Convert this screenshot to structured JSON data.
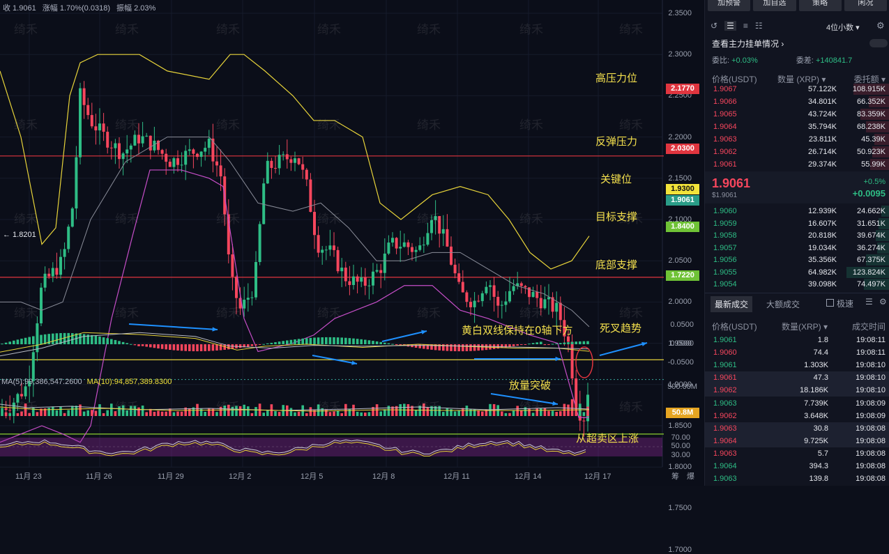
{
  "chart_header": {
    "close": "收 1.9061",
    "change": "涨幅 1.70%(0.0318)",
    "amplitude": "振幅 2.03%"
  },
  "price_axis": [
    "2.3500",
    "2.3000",
    "2.2500",
    "2.2000",
    "2.1500",
    "2.1000",
    "2.0500",
    "2.0000",
    "1.9500",
    "1.9000",
    "1.8500",
    "1.8000",
    "1.7500",
    "1.7000"
  ],
  "price_tags": {
    "high_resistance": "2.1770",
    "rebound_resistance": "2.0300",
    "key_level": "1.9300",
    "current": "1.9061",
    "target_support": "1.8400",
    "bottom_support": "1.7220"
  },
  "low_marker": "← 1.8201",
  "annotations": {
    "high_resistance": "高压力位",
    "rebound_resistance": "反弹压力",
    "key_level": "关键位",
    "target_support": "目标支撑",
    "bottom_support": "底部支撑",
    "macd_note": "黄白双线保持在0轴下方",
    "dead_cross": "死叉趋势",
    "volume_break": "放量突破",
    "rsi_note": "从超卖区上涨"
  },
  "macd_axis": [
    "0.0500",
    "0.0000",
    "-0.0500"
  ],
  "volume_ma": {
    "ma5": "MA(5):99,386,547.2600",
    "ma10": "MA(10):94,857,389.8300"
  },
  "volume_axis": {
    "top": "500.00M",
    "current": "50.8M"
  },
  "rsi_axis": [
    "70.00",
    "50.00",
    "30.00"
  ],
  "dates": [
    "11月 23",
    "11月 26",
    "11月 29",
    "12月 2",
    "12月 5",
    "12月 8",
    "12月 11",
    "12月 14",
    "12月 17"
  ],
  "watermark": "绮禾",
  "corner": [
    "筹",
    "爆"
  ],
  "colors": {
    "up": "#2ebd85",
    "down": "#f6465d",
    "resistance": "#e0353f",
    "keylevel": "#e6d23a",
    "support": "#8ccf2f",
    "annotation": "#f4e04d",
    "boll_upper": "#e8d43a",
    "boll_lower": "#c64ec8",
    "arrow": "#1e90ff"
  },
  "side": {
    "buttons": [
      "加预警",
      "加自选",
      "策略",
      "闲况"
    ],
    "precision": "4位小数",
    "title": "查看主力挂单情况 ›",
    "ratio_label": "委比:",
    "ratio_value": "+0.03%",
    "diff_label": "委差:",
    "diff_value": "+140841.7",
    "ob_headers": [
      "价格(USDT)",
      "数量 (XRP) ▾",
      "委托额 ▾"
    ],
    "asks": [
      [
        "1.9067",
        "57.122K",
        "108.915K"
      ],
      [
        "1.9066",
        "34.801K",
        "66.352K"
      ],
      [
        "1.9065",
        "43.724K",
        "83.359K"
      ],
      [
        "1.9064",
        "35.794K",
        "68.238K"
      ],
      [
        "1.9063",
        "23.811K",
        "45.39K"
      ],
      [
        "1.9062",
        "26.714K",
        "50.923K"
      ],
      [
        "1.9061",
        "29.374K",
        "55.99K"
      ]
    ],
    "mid_price": "1.9061",
    "mid_usd": "$1.9061",
    "mid_pct": "+0.5%",
    "mid_change": "+0.0095",
    "bids": [
      [
        "1.9060",
        "12.939K",
        "24.662K"
      ],
      [
        "1.9059",
        "16.607K",
        "31.651K"
      ],
      [
        "1.9058",
        "20.818K",
        "39.674K"
      ],
      [
        "1.9057",
        "19.034K",
        "36.274K"
      ],
      [
        "1.9056",
        "35.356K",
        "67.375K"
      ],
      [
        "1.9055",
        "64.982K",
        "123.824K"
      ],
      [
        "1.9054",
        "39.098K",
        "74.497K"
      ]
    ],
    "trade_tabs": [
      "最新成交",
      "大额成交"
    ],
    "fast_label": "极速",
    "trade_headers": [
      "价格(USDT)",
      "数量(XRP) ▾",
      "成交时间"
    ],
    "trades": [
      [
        "1.9061",
        "1.8",
        "19:08:11",
        "up"
      ],
      [
        "1.9060",
        "74.4",
        "19:08:11",
        "down"
      ],
      [
        "1.9061",
        "1.303K",
        "19:08:10",
        "up"
      ],
      [
        "1.9061",
        "47.3",
        "19:08:10",
        "down"
      ],
      [
        "1.9062",
        "18.186K",
        "19:08:10",
        "down"
      ],
      [
        "1.9063",
        "7.739K",
        "19:08:09",
        "up"
      ],
      [
        "1.9062",
        "3.648K",
        "19:08:09",
        "down"
      ],
      [
        "1.9063",
        "30.8",
        "19:08:08",
        "down"
      ],
      [
        "1.9064",
        "9.725K",
        "19:08:08",
        "down"
      ],
      [
        "1.9063",
        "5.7",
        "19:08:08",
        "down"
      ],
      [
        "1.9064",
        "394.3",
        "19:08:08",
        "up"
      ],
      [
        "1.9063",
        "139.8",
        "19:08:08",
        "up"
      ]
    ]
  }
}
